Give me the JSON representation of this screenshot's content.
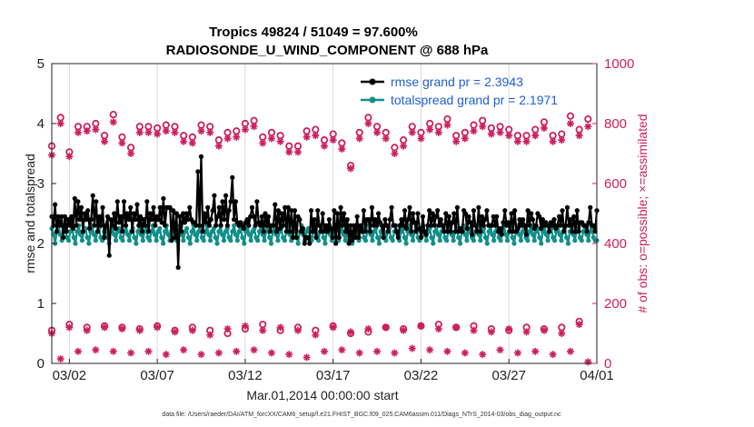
{
  "chart_data": {
    "type": "line",
    "title": "Tropics 49824 / 51049 = 97.600%",
    "subtitle": "RADIOSONDE_U_WIND_COMPONENT @ 688 hPa",
    "xlabel": "Mar.01,2014 00:00:00 start",
    "ylabel_left": "rmse and totalspread",
    "ylabel_right": "# of obs: o=possible; ×=assimilated",
    "x_range_days": [
      0,
      31
    ],
    "x_ticks": [
      {
        "day": 1,
        "label": "03/02"
      },
      {
        "day": 6,
        "label": "03/07"
      },
      {
        "day": 11,
        "label": "03/12"
      },
      {
        "day": 16,
        "label": "03/17"
      },
      {
        "day": 21,
        "label": "03/22"
      },
      {
        "day": 26,
        "label": "03/27"
      },
      {
        "day": 31,
        "label": "04/01"
      }
    ],
    "ylim_left": [
      0,
      5
    ],
    "yticks_left": [
      "0",
      "1",
      "2",
      "3",
      "4",
      "5"
    ],
    "ylim_right": [
      0,
      1000
    ],
    "yticks_right": [
      "0",
      "200",
      "400",
      "600",
      "800",
      "1000"
    ],
    "legend_location": "top-right",
    "footer": "data file: /Users/raeder/DAI/ATM_forcXX/CAM6_setup/f.e21.FHIST_BGC.f09_025.CAM6assim.011/Diags_NTrS_2014-03/obs_diag_output.nc",
    "colors": {
      "rmse": "#000000",
      "spread": "#118f8a",
      "obs": "#cc1f5e",
      "legend_text": "#1f5fd6"
    },
    "series": [
      {
        "name": "rmse grand pr = 2.3943",
        "axis": "left",
        "values": [
          2.45,
          2.3,
          2.65,
          2.2,
          2.45,
          2.3,
          2.45,
          2.1,
          2.45,
          2.2,
          2.4,
          2.3,
          2.45,
          2.25,
          2.75,
          2.3,
          2.7,
          2.4,
          2.6,
          2.2,
          2.5,
          2.4,
          2.55,
          2.25,
          2.4,
          2.8,
          2.3,
          2.7,
          2.2,
          2.45,
          2.3,
          2.6,
          2.1,
          2.3,
          2.45,
          1.8,
          2.4,
          2.3,
          2.5,
          2.25,
          2.7,
          2.35,
          2.45,
          2.2,
          2.7,
          2.3,
          2.5,
          2.4,
          2.6,
          2.2,
          2.5,
          2.4,
          2.65,
          2.3,
          2.45,
          2.2,
          2.4,
          2.3,
          2.7,
          2.2,
          2.5,
          2.4,
          2.6,
          2.3,
          2.45,
          2.4,
          2.6,
          2.35,
          2.75,
          2.3,
          2.6,
          2.6,
          2.6,
          2.05,
          2.55,
          2.1,
          2.5,
          1.6,
          2.45,
          2.2,
          2.5,
          2.35,
          2.5,
          2.4,
          2.6,
          2.4,
          2.35,
          2.35,
          2.3,
          3.2,
          2.3,
          3.45,
          2.2,
          2.5,
          2.35,
          2.6,
          2.3,
          2.4,
          2.55,
          2.8,
          2.3,
          2.45,
          2.6,
          2.3,
          2.7,
          2.4,
          2.8,
          2.3,
          2.55,
          2.7,
          3.1,
          2.4,
          2.7,
          2.35,
          2.3,
          2.35,
          2.3,
          2.25,
          2.35,
          2.4,
          2.3,
          2.45,
          2.6,
          2.45,
          2.3,
          2.7,
          2.35,
          2.3,
          2.45,
          2.2,
          2.5,
          2.3,
          2.45,
          2.2,
          2.3,
          2.3,
          2.65,
          2.2,
          2.55,
          2.25,
          2.5,
          2.3,
          2.6,
          2.2,
          2.6,
          2.2,
          2.55,
          2.1,
          2.55,
          2.1,
          2.45,
          2.4,
          2.2,
          2.25,
          2.0,
          2.1,
          2.1,
          2.0,
          2.55,
          2.2,
          2.4,
          2.1,
          2.55,
          2.3,
          2.2,
          2.5,
          2.2,
          2.3,
          2.2,
          2.4,
          2.25,
          2.1,
          2.55,
          2.0,
          2.5,
          2.1,
          2.6,
          2.3,
          2.5,
          2.2,
          2.4,
          2.0,
          2.3,
          2.05,
          2.3,
          2.1,
          2.45,
          2.1,
          2.3,
          2.2,
          2.55,
          2.2,
          2.4,
          2.4,
          2.2,
          2.6,
          2.3,
          2.4,
          2.3,
          2.5,
          2.35,
          2.3,
          2.1,
          2.4,
          2.3,
          2.2,
          2.4,
          2.6,
          2.3,
          2.3,
          2.2,
          2.1,
          2.3,
          2.4,
          2.3,
          2.55,
          2.25,
          2.4,
          2.6,
          2.2,
          2.5,
          2.35,
          2.2,
          2.5,
          2.25,
          2.1,
          2.45,
          2.2,
          2.15,
          2.3,
          2.55,
          2.3,
          2.5,
          2.3,
          2.45,
          2.55,
          2.3,
          2.4,
          2.3,
          2.2,
          2.5,
          2.2,
          2.45,
          2.2,
          2.35,
          2.5,
          2.2,
          2.6,
          2.2,
          2.25,
          2.2,
          2.55,
          2.5,
          2.25,
          2.45,
          2.35,
          2.15,
          2.55,
          2.3,
          2.2,
          2.6,
          2.2,
          2.45,
          2.3,
          2.4,
          2.55,
          2.3,
          2.3,
          2.3,
          2.45,
          2.3,
          2.45,
          2.2,
          2.25,
          2.15,
          2.35,
          2.55,
          2.3,
          2.35,
          2.2,
          2.5,
          2.2,
          2.55,
          2.2,
          2.25,
          2.4,
          2.3,
          2.4,
          2.3,
          2.15,
          2.55,
          2.3,
          2.5,
          2.4,
          2.25,
          2.3,
          2.5,
          2.45,
          2.25,
          2.4,
          2.3,
          2.35,
          2.3,
          2.2,
          2.35,
          2.3,
          2.4,
          2.25,
          2.3,
          2.45,
          2.3,
          2.55,
          2.2,
          2.3,
          2.6,
          2.3,
          2.4,
          2.2,
          2.45,
          2.2,
          2.55,
          2.2,
          2.35,
          2.35,
          2.3,
          2.3,
          2.2,
          2.35,
          2.6,
          2.3,
          2.3,
          2.2,
          2.55
        ]
      },
      {
        "name": "totalspread grand pr = 2.1971",
        "axis": "left",
        "values": [
          2.25,
          2.15,
          2.0,
          2.2,
          2.3,
          2.15,
          2.05,
          2.2,
          2.25,
          2.1,
          2.05,
          2.2,
          2.3,
          2.1,
          2.0,
          2.2,
          2.3,
          2.15,
          2.05,
          2.2,
          2.25,
          2.1,
          2.0,
          2.2,
          2.3,
          2.15,
          2.05,
          2.2,
          2.25,
          2.1,
          2.05,
          2.2,
          2.3,
          2.1,
          2.0,
          2.2,
          2.3,
          2.15,
          2.05,
          2.2,
          2.25,
          2.1,
          2.05,
          2.2,
          2.3,
          2.15,
          2.05,
          2.2,
          2.25,
          2.1,
          2.0,
          2.2,
          2.3,
          2.15,
          2.05,
          2.2,
          2.25,
          2.1,
          2.05,
          2.2,
          2.3,
          2.15,
          2.05,
          2.2,
          2.25,
          2.1,
          2.0,
          2.2,
          2.3,
          2.15,
          2.05,
          2.2,
          2.25,
          2.1,
          2.05,
          2.2,
          2.3,
          2.15,
          2.05,
          2.2,
          2.25,
          2.1,
          2.0,
          2.2,
          2.3,
          2.15,
          2.05,
          2.2,
          2.25,
          2.1,
          2.05,
          2.2,
          2.3,
          2.15,
          2.05,
          2.2,
          2.25,
          2.1,
          2.0,
          2.2,
          2.3,
          2.15,
          2.05,
          2.2,
          2.25,
          2.1,
          2.05,
          2.2,
          2.3,
          2.15,
          2.05,
          2.2,
          2.25,
          2.1,
          2.0,
          2.2,
          2.3,
          2.15,
          2.05,
          2.2,
          2.25,
          2.1,
          2.05,
          2.2,
          2.3,
          2.15,
          2.05,
          2.2,
          2.25,
          2.1,
          2.0,
          2.2,
          2.3,
          2.15,
          2.05,
          2.2,
          2.25,
          2.1,
          2.05,
          2.2,
          2.3,
          2.15,
          2.05,
          2.2,
          2.25,
          2.1,
          2.0,
          2.2,
          2.3,
          2.15,
          2.05,
          2.2,
          2.25,
          2.1,
          2.05,
          2.2,
          2.3,
          2.15,
          2.05,
          2.2,
          2.25,
          2.1,
          2.0,
          2.2,
          2.3,
          2.15,
          2.05,
          2.2,
          2.25,
          2.1,
          2.05,
          2.2,
          2.3,
          2.15,
          2.05,
          2.2,
          2.25,
          2.1,
          2.0,
          2.2,
          2.3,
          2.15,
          2.05,
          2.2,
          2.25,
          2.1,
          2.05,
          2.2,
          2.3,
          2.15,
          2.05,
          2.2,
          2.25,
          2.1,
          2.0,
          2.2,
          2.3,
          2.15,
          2.05,
          2.2,
          2.25,
          2.1,
          2.05,
          2.2,
          2.3,
          2.15,
          2.05,
          2.2,
          2.25,
          2.1,
          2.0,
          2.2,
          2.3,
          2.15,
          2.05,
          2.2,
          2.25,
          2.1,
          2.05,
          2.2,
          2.3,
          2.15,
          2.05,
          2.2,
          2.25,
          2.1,
          2.0,
          2.2,
          2.3,
          2.15,
          2.05,
          2.2,
          2.25,
          2.1,
          2.05,
          2.2,
          2.3,
          2.15,
          2.05,
          2.2,
          2.25,
          2.1,
          2.0,
          2.2,
          2.3,
          2.15,
          2.05,
          2.2,
          2.25,
          2.1,
          2.05,
          2.2,
          2.3,
          2.15,
          2.05,
          2.2,
          2.25,
          2.1,
          2.0,
          2.2,
          2.3,
          2.15,
          2.05,
          2.2,
          2.25,
          2.1,
          2.05,
          2.2,
          2.3,
          2.15,
          2.05,
          2.2,
          2.25,
          2.1,
          2.0,
          2.2,
          2.3,
          2.15,
          2.05,
          2.2,
          2.25,
          2.1,
          2.05,
          2.2,
          2.3,
          2.15,
          2.05,
          2.2,
          2.25,
          2.1,
          2.0,
          2.2,
          2.3,
          2.15,
          2.05,
          2.2,
          2.25,
          2.1,
          2.05,
          2.2,
          2.3,
          2.15,
          2.05,
          2.2,
          2.25,
          2.1,
          2.0,
          2.2,
          2.3,
          2.15,
          2.05,
          2.2,
          2.25,
          2.1,
          2.05,
          2.2,
          2.3,
          2.15,
          2.05,
          2.2,
          2.25,
          2.1,
          2.05,
          2.05
        ]
      },
      {
        "name": "obs possible (upper cluster)",
        "axis": "right",
        "marker": "circle",
        "days": [
          0,
          0.5,
          1,
          1.5,
          2,
          2.5,
          3,
          3.5,
          4,
          4.5,
          5,
          5.5,
          6,
          6.5,
          7,
          7.5,
          8,
          8.5,
          9,
          9.5,
          10,
          10.5,
          11,
          11.5,
          12,
          12.5,
          13,
          13.5,
          14,
          14.5,
          15,
          15.5,
          16,
          16.5,
          17,
          17.5,
          18,
          18.5,
          19,
          19.5,
          20,
          20.5,
          21,
          21.5,
          22,
          22.5,
          23,
          23.5,
          24,
          24.5,
          25,
          25.5,
          26,
          26.5,
          27,
          27.5,
          28,
          28.5,
          29,
          29.5,
          30,
          30.5
        ],
        "values": [
          725,
          820,
          705,
          790,
          790,
          800,
          760,
          830,
          755,
          720,
          790,
          790,
          785,
          795,
          790,
          760,
          755,
          795,
          790,
          745,
          770,
          775,
          800,
          810,
          755,
          770,
          760,
          725,
          725,
          775,
          780,
          745,
          765,
          735,
          660,
          770,
          820,
          790,
          770,
          720,
          745,
          790,
          770,
          800,
          790,
          815,
          760,
          770,
          795,
          810,
          785,
          790,
          780,
          760,
          760,
          780,
          805,
          760,
          765,
          825,
          780,
          815
        ]
      },
      {
        "name": "obs assimilated (upper cluster)",
        "axis": "right",
        "marker": "asterisk",
        "days": [
          0,
          0.5,
          1,
          1.5,
          2,
          2.5,
          3,
          3.5,
          4,
          4.5,
          5,
          5.5,
          6,
          6.5,
          7,
          7.5,
          8,
          8.5,
          9,
          9.5,
          10,
          10.5,
          11,
          11.5,
          12,
          12.5,
          13,
          13.5,
          14,
          14.5,
          15,
          15.5,
          16,
          16.5,
          17,
          17.5,
          18,
          18.5,
          19,
          19.5,
          20,
          20.5,
          21,
          21.5,
          22,
          22.5,
          23,
          23.5,
          24,
          24.5,
          25,
          25.5,
          26,
          26.5,
          27,
          27.5,
          28,
          28.5,
          29,
          29.5,
          30,
          30.5
        ],
        "values": [
          695,
          800,
          690,
          770,
          775,
          780,
          740,
          805,
          735,
          700,
          770,
          770,
          765,
          775,
          770,
          740,
          735,
          775,
          770,
          725,
          750,
          755,
          780,
          790,
          735,
          750,
          740,
          705,
          705,
          755,
          760,
          725,
          745,
          715,
          650,
          750,
          800,
          770,
          750,
          700,
          725,
          770,
          750,
          780,
          770,
          795,
          740,
          750,
          775,
          790,
          765,
          770,
          760,
          740,
          740,
          760,
          785,
          740,
          745,
          800,
          760,
          790
        ]
      },
      {
        "name": "obs possible (lower cluster)",
        "axis": "right",
        "marker": "circle",
        "days": [
          0,
          1,
          2,
          3,
          4,
          5,
          6,
          7,
          8,
          9,
          10,
          11,
          12,
          13,
          14,
          15,
          16,
          17,
          18,
          19,
          20,
          21,
          22,
          23,
          24,
          25,
          26,
          27,
          28,
          29,
          30
        ],
        "values": [
          110,
          130,
          120,
          125,
          120,
          115,
          125,
          110,
          120,
          110,
          100,
          115,
          130,
          110,
          120,
          110,
          125,
          100,
          105,
          120,
          115,
          125,
          130,
          120,
          125,
          115,
          110,
          120,
          115,
          120,
          140
        ]
      },
      {
        "name": "obs assimilated (lower cluster)",
        "axis": "right",
        "marker": "asterisk",
        "days": [
          0,
          0.5,
          1,
          1.5,
          2,
          2.5,
          3,
          3.5,
          4,
          4.5,
          5,
          5.5,
          6,
          6.5,
          7,
          7.5,
          8,
          8.5,
          9,
          9.5,
          10,
          10.5,
          11,
          11.5,
          12,
          12.5,
          13,
          13.5,
          14,
          14.5,
          15,
          15.5,
          16,
          16.5,
          17,
          17.5,
          18,
          18.5,
          19,
          19.5,
          20,
          20.5,
          21,
          21.5,
          22,
          22.5,
          23,
          23.5,
          24,
          24.5,
          25,
          25.5,
          26,
          26.5,
          27,
          27.5,
          28,
          28.5,
          29,
          29.5,
          30,
          30.5
        ],
        "values": [
          100,
          15,
          120,
          40,
          110,
          45,
          120,
          40,
          115,
          35,
          110,
          40,
          120,
          30,
          105,
          45,
          110,
          30,
          95,
          35,
          115,
          40,
          125,
          45,
          110,
          35,
          120,
          30,
          110,
          20,
          95,
          40,
          120,
          45,
          105,
          35,
          115,
          40,
          120,
          35,
          110,
          50,
          125,
          45,
          115,
          40,
          120,
          35,
          110,
          30,
          105,
          45,
          115,
          35,
          105,
          40,
          110,
          30,
          100,
          40,
          130,
          5
        ]
      }
    ]
  }
}
